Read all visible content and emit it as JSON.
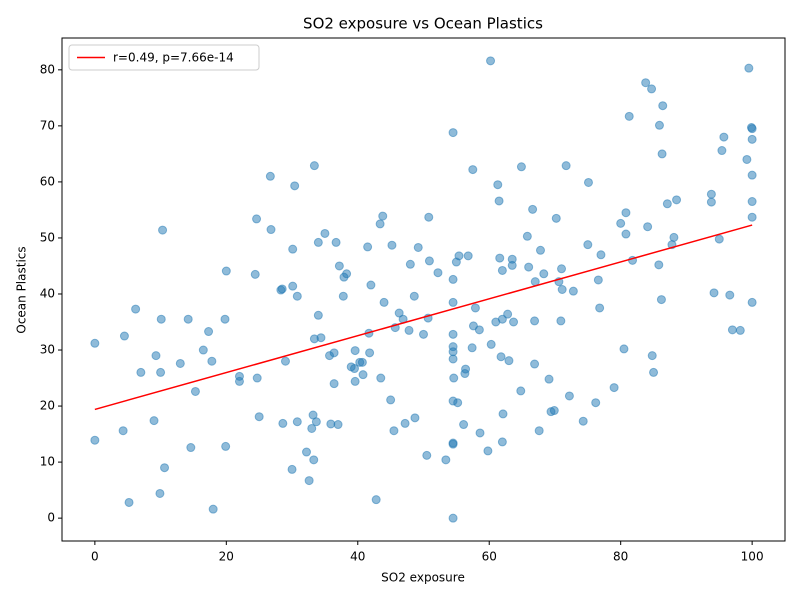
{
  "chart_data": {
    "type": "scatter",
    "title": "SO2 exposure vs Ocean Plastics",
    "xlabel": "SO2 exposure",
    "ylabel": "Ocean Plastics",
    "color": "#1f77b4",
    "opacity": 0.5,
    "grid": false,
    "legend": "upper left",
    "xlim": [
      -5,
      105
    ],
    "ylim": [
      -4.08,
      85.68
    ],
    "xticks": [
      0,
      20,
      40,
      60,
      80,
      100
    ],
    "yticks": [
      0,
      10,
      20,
      30,
      40,
      50,
      60,
      70,
      80
    ],
    "x": [
      0,
      0,
      4.5,
      4.3,
      5.2,
      6.2,
      7,
      9,
      9.3,
      9.9,
      10,
      10.1,
      10.3,
      10.6,
      13,
      14.2,
      14.6,
      15.3,
      16.5,
      17.3,
      17.8,
      18,
      19.8,
      19.9,
      20,
      22,
      22,
      24.4,
      24.6,
      24.7,
      25,
      26.7,
      26.8,
      28.3,
      28.5,
      28.6,
      29,
      30,
      30.1,
      30.1,
      30.4,
      30.8,
      30.8,
      32.2,
      32.6,
      33,
      33.2,
      33.3,
      33.4,
      33.4,
      33.7,
      34,
      34,
      34.4,
      35,
      35.7,
      35.9,
      36.4,
      36.4,
      36.7,
      37,
      37.2,
      37.8,
      37.9,
      38.3,
      39,
      39.5,
      39.6,
      39.6,
      40.3,
      40.7,
      40.8,
      41.5,
      41.7,
      41.8,
      42,
      42.8,
      43.4,
      43.5,
      43.8,
      44,
      45,
      45.2,
      45.5,
      45.7,
      46.3,
      46.9,
      47.2,
      47.8,
      48,
      48.6,
      48.7,
      49.2,
      50,
      50.5,
      50.7,
      50.9,
      50.8,
      52.2,
      53.4,
      54.5,
      54.5,
      54.5,
      54.5,
      54.5,
      54.5,
      54.5,
      54.5,
      54.6,
      54.5,
      54.5,
      54.5,
      55,
      55.2,
      55.4,
      56.1,
      56.3,
      56.4,
      56.8,
      57.4,
      57.5,
      57.6,
      57.9,
      58.5,
      58.6,
      59.8,
      60.2,
      60.3,
      61,
      61.3,
      61.5,
      61.6,
      61.8,
      62,
      62,
      62.1,
      62,
      62.8,
      63,
      63.5,
      63.5,
      63.7,
      64.8,
      64.9,
      65.8,
      66,
      66.6,
      66.9,
      66.9,
      67,
      67.6,
      67.8,
      68.3,
      69.1,
      69.4,
      69.9,
      70.2,
      70.6,
      70.9,
      71,
      71.1,
      71.7,
      72.2,
      72.8,
      74.3,
      75,
      75.1,
      76.2,
      76.6,
      76.8,
      77,
      79,
      80,
      80.5,
      80.8,
      80.8,
      81.3,
      81.8,
      83.8,
      84.1,
      84.7,
      84.8,
      85,
      85.8,
      85.9,
      86.2,
      86.3,
      86.4,
      87.1,
      87.8,
      88.1,
      88.5,
      93.8,
      93.8,
      94.2,
      95,
      95.4,
      95.7,
      96.6,
      97,
      98.2,
      99.2,
      99.5,
      99.9,
      100,
      100,
      100,
      100,
      100,
      100
    ],
    "y": [
      31.2,
      13.9,
      32.5,
      15.6,
      2.8,
      37.3,
      26,
      17.4,
      29,
      4.4,
      26,
      35.5,
      51.4,
      9,
      27.6,
      35.5,
      12.6,
      22.6,
      30,
      33.3,
      28,
      1.6,
      35.5,
      12.8,
      44.1,
      25.3,
      24.4,
      43.5,
      53.4,
      25,
      18.1,
      61,
      51.5,
      40.7,
      40.9,
      16.9,
      28,
      8.7,
      41.4,
      48,
      59.3,
      39.6,
      17.2,
      11.8,
      6.7,
      16,
      18.4,
      10.4,
      62.9,
      32,
      17.2,
      49.2,
      36.2,
      32.2,
      50.8,
      29,
      16.8,
      29.5,
      24,
      49.2,
      16.7,
      45,
      39.6,
      43,
      43.6,
      27,
      26.7,
      24.4,
      29.9,
      27.8,
      27.8,
      25.6,
      48.4,
      33,
      29.5,
      41.6,
      3.3,
      52.5,
      25,
      53.9,
      38.5,
      21.1,
      48.7,
      15.6,
      34,
      36.6,
      35.5,
      16.9,
      33.5,
      45.3,
      39.6,
      17.9,
      48.3,
      32.8,
      11.2,
      35.7,
      45.9,
      53.7,
      43.8,
      10.4,
      68.8,
      42.6,
      38.5,
      32.8,
      30.6,
      29.7,
      28.4,
      20.9,
      25,
      13.4,
      13.2,
      0,
      45.7,
      20.6,
      46.8,
      16.7,
      25.8,
      26.6,
      46.8,
      30.4,
      62.2,
      34.3,
      37.5,
      33.6,
      15.2,
      12,
      81.6,
      31,
      35,
      59.5,
      56.6,
      46.4,
      28.8,
      35.5,
      44.2,
      18.6,
      13.6,
      36.4,
      28.1,
      46.2,
      45.1,
      35,
      22.7,
      62.7,
      50.3,
      44.8,
      55.1,
      27.5,
      35.2,
      42.2,
      15.6,
      47.8,
      43.6,
      24.8,
      19,
      19.2,
      53.5,
      42.2,
      35.2,
      44.5,
      40.8,
      62.9,
      21.8,
      40.5,
      17.3,
      48.8,
      59.9,
      20.6,
      42.5,
      37.5,
      47,
      23.3,
      52.6,
      30.2,
      50.7,
      54.5,
      71.7,
      46,
      77.7,
      52,
      76.6,
      29,
      26,
      45.2,
      70.1,
      39,
      65,
      73.6,
      56.1,
      48.8,
      50.1,
      56.8,
      57.8,
      56.4,
      40.2,
      49.8,
      65.6,
      68,
      39.8,
      33.6,
      33.5,
      64,
      80.3,
      69.7,
      69.5,
      67.6,
      61.2,
      56.5,
      53.7,
      38.5
    ],
    "fit": {
      "label": "r=0.49, p=7.66e-14",
      "color": "#ff0000",
      "x": [
        0,
        100
      ],
      "y": [
        19.4,
        52.3
      ]
    }
  }
}
